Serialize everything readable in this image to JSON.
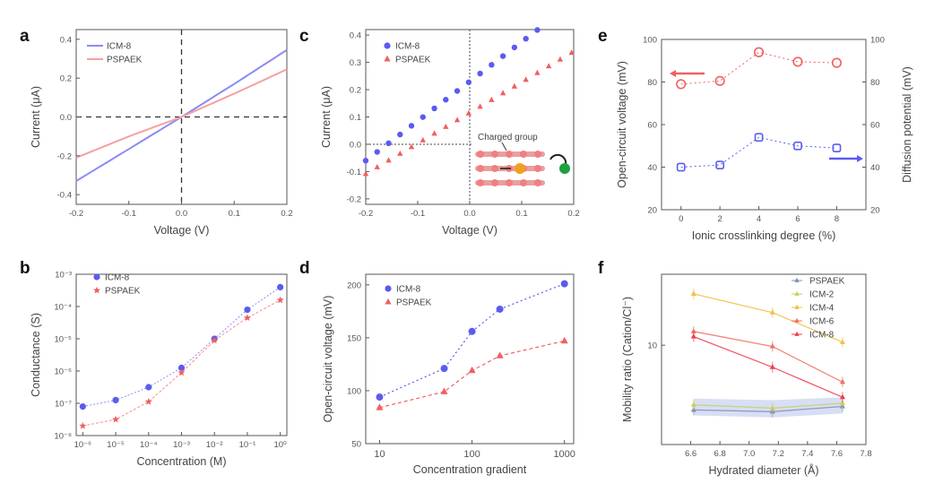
{
  "colors": {
    "blue": "#5b5bf0",
    "red": "#f06060",
    "axis": "#555555",
    "lightblue": "#8b8bf5",
    "lightred": "#f5a0a0"
  },
  "chart_data": [
    {
      "id": "a",
      "panel": "a",
      "type": "line",
      "xlabel": "Voltage (V)",
      "ylabel": "Current (μA)",
      "xlim": [
        -0.2,
        0.2
      ],
      "ylim": [
        -0.45,
        0.45
      ],
      "xticks": [
        -0.2,
        -0.1,
        0.0,
        0.1,
        0.2
      ],
      "xtick_labels": [
        "-0.2",
        "-0.1",
        "0.0",
        "0.1",
        "0.2"
      ],
      "yticks": [
        -0.4,
        -0.2,
        0.0,
        0.2,
        0.4
      ],
      "ytick_labels": [
        "-0.4",
        "-0.2",
        "0.0",
        "0.2",
        "0.4"
      ],
      "legend": "top-left",
      "series": [
        {
          "name": "ICM-8",
          "color": "#8b8bf5",
          "x": [
            -0.2,
            -0.1,
            0.0,
            0.1,
            0.2
          ],
          "y": [
            -0.33,
            -0.165,
            0.0,
            0.17,
            0.345
          ]
        },
        {
          "name": "PSPAEK",
          "color": "#f5a0a0",
          "x": [
            -0.2,
            -0.1,
            0.0,
            0.1,
            0.2
          ],
          "y": [
            -0.21,
            -0.1,
            0.0,
            0.12,
            0.245
          ]
        }
      ]
    },
    {
      "id": "b",
      "panel": "b",
      "type": "scatter",
      "xlabel": "Concentration (M)",
      "ylabel": "Conductance (S)",
      "xlim": [
        -6.2,
        0.2
      ],
      "ylim": [
        -8,
        -3
      ],
      "xticks": [
        -6,
        -5,
        -4,
        -3,
        -2,
        -1,
        0
      ],
      "xtick_labels": [
        "10⁻⁶",
        "10⁻⁵",
        "10⁻⁴",
        "10⁻³",
        "10⁻²",
        "10⁻¹",
        "10⁰"
      ],
      "yticks": [
        -8,
        -7,
        -6,
        -5,
        -4,
        -3
      ],
      "ytick_labels": [
        "10⁻⁸",
        "10⁻⁷",
        "10⁻⁶",
        "10⁻⁵",
        "10⁻⁴",
        "10⁻³"
      ],
      "legend": "top-left",
      "series": [
        {
          "name": "ICM-8",
          "color": "#5b5bf0",
          "marker": "circle",
          "x": [
            -6,
            -5,
            -4,
            -3,
            -2,
            -1,
            0
          ],
          "y": [
            -7.1,
            -6.9,
            -6.5,
            -5.9,
            -5.0,
            -4.1,
            -3.4
          ]
        },
        {
          "name": "PSPAEK",
          "color": "#f06060",
          "marker": "star",
          "x": [
            -6,
            -5,
            -4,
            -3,
            -2,
            -1,
            0
          ],
          "y": [
            -7.7,
            -7.5,
            -6.95,
            -6.05,
            -5.05,
            -4.35,
            -3.8
          ]
        }
      ]
    },
    {
      "id": "c",
      "panel": "c",
      "type": "scatter",
      "xlabel": "Voltage (V)",
      "ylabel": "Current (μA)",
      "xlim": [
        -0.2,
        0.2
      ],
      "ylim": [
        -0.22,
        0.42
      ],
      "xticks": [
        -0.2,
        -0.1,
        0.0,
        0.1,
        0.2
      ],
      "xtick_labels": [
        "-0.2",
        "-0.1",
        "0.0",
        "0.1",
        "0.2"
      ],
      "yticks": [
        -0.2,
        -0.1,
        0.0,
        0.1,
        0.2,
        0.3,
        0.4
      ],
      "ytick_labels": [
        "-0.2",
        "-0.1",
        "0.0",
        "0.1",
        "0.2",
        "0.3",
        "0.4"
      ],
      "legend": "top-left",
      "annotation": "Charged group",
      "series": [
        {
          "name": "ICM-8",
          "color": "#5b5bf0",
          "marker": "circle",
          "slope": 1.45,
          "intercept": 0.23,
          "x_start": -0.2,
          "x_end": 0.13,
          "x_step": 0.022
        },
        {
          "name": "PSPAEK",
          "color": "#f06060",
          "marker": "triangle",
          "slope": 1.12,
          "intercept": 0.115,
          "x_start": -0.2,
          "x_end": 0.2,
          "x_step": 0.022
        }
      ]
    },
    {
      "id": "d",
      "panel": "d",
      "type": "line",
      "xlabel": "Concentration gradient",
      "ylabel": "Open-circuit voltage (mV)",
      "xscale": "log",
      "xlim": [
        0.85,
        3.1
      ],
      "ylim": [
        50,
        210
      ],
      "xticks": [
        1,
        2,
        3
      ],
      "xtick_labels": [
        "10",
        "100",
        "1000"
      ],
      "yticks": [
        50,
        100,
        150,
        200
      ],
      "ytick_labels": [
        "50",
        "100",
        "150",
        "200"
      ],
      "legend": "top-left",
      "series": [
        {
          "name": "ICM-8",
          "color": "#5b5bf0",
          "marker": "circle",
          "x": [
            10,
            50,
            100,
            200,
            1000
          ],
          "y": [
            94,
            121,
            156,
            177,
            201
          ]
        },
        {
          "name": "PSPAEK",
          "color": "#f06060",
          "marker": "triangle",
          "x": [
            10,
            50,
            100,
            200,
            1000
          ],
          "y": [
            84,
            99,
            119,
            133,
            147
          ]
        }
      ]
    },
    {
      "id": "e",
      "panel": "e",
      "type": "line",
      "xlabel": "Ionic crosslinking degree (%)",
      "ylabel": "Open-circuit voltage (mV)",
      "y2label": "Diffusion potential (mV)",
      "xlim": [
        -1,
        9.5
      ],
      "ylim": [
        20,
        100
      ],
      "y2lim": [
        20,
        100
      ],
      "xticks": [
        0,
        2,
        4,
        6,
        8
      ],
      "xtick_labels": [
        "0",
        "2",
        "4",
        "6",
        "8"
      ],
      "yticks": [
        20,
        40,
        60,
        80,
        100
      ],
      "ytick_labels": [
        "20",
        "40",
        "60",
        "80",
        "100"
      ],
      "y2ticks": [
        20,
        40,
        60,
        80,
        100
      ],
      "y2tick_labels": [
        "20",
        "40",
        "60",
        "80",
        "100"
      ],
      "series": [
        {
          "name": "Open-circuit voltage",
          "axis": "left",
          "color": "#f06060",
          "marker": "circle",
          "x": [
            0,
            2,
            4,
            6,
            8
          ],
          "y": [
            79,
            80.5,
            94,
            89.5,
            89
          ]
        },
        {
          "name": "Diffusion potential",
          "axis": "right",
          "color": "#5b5bf0",
          "marker": "square",
          "x": [
            0,
            2,
            4,
            6,
            8
          ],
          "y": [
            40,
            41,
            54,
            50,
            49
          ]
        }
      ]
    },
    {
      "id": "f",
      "panel": "f",
      "type": "line",
      "xlabel": "Hydrated diameter (Å)",
      "ylabel": "Mobility ratio (Cation/Cl⁻)",
      "xlim": [
        6.4,
        7.8
      ],
      "ylim_log": [
        0.3,
        1.5
      ],
      "xticks": [
        6.6,
        6.8,
        7.0,
        7.2,
        7.4,
        7.6,
        7.8
      ],
      "xtick_labels": [
        "6.6",
        "6.8",
        "7.0",
        "7.2",
        "7.4",
        "7.6",
        "7.8"
      ],
      "yticks": [
        1
      ],
      "ytick_labels": [
        "10"
      ],
      "legend": "top-right",
      "series": [
        {
          "name": "PSPAEK",
          "color": "#8090b0",
          "marker": "triangle",
          "x": [
            6.62,
            7.16,
            7.64
          ],
          "y": [
            3.5,
            3.4,
            3.7
          ]
        },
        {
          "name": "ICM-2",
          "color": "#c8d060",
          "marker": "triangle",
          "x": [
            6.62,
            7.16,
            7.64
          ],
          "y": [
            3.8,
            3.6,
            3.9
          ]
        },
        {
          "name": "ICM-4",
          "color": "#f0c040",
          "marker": "triangle",
          "x": [
            6.62,
            7.16,
            7.64
          ],
          "y": [
            23,
            17,
            10.5
          ]
        },
        {
          "name": "ICM-6",
          "color": "#f07060",
          "marker": "triangle",
          "x": [
            6.62,
            7.16,
            7.64
          ],
          "y": [
            12.5,
            9.8,
            5.5
          ]
        },
        {
          "name": "ICM-8",
          "color": "#f03c50",
          "marker": "triangle",
          "x": [
            6.62,
            7.16,
            7.64
          ],
          "y": [
            11.5,
            7.0,
            4.3
          ]
        }
      ]
    }
  ]
}
